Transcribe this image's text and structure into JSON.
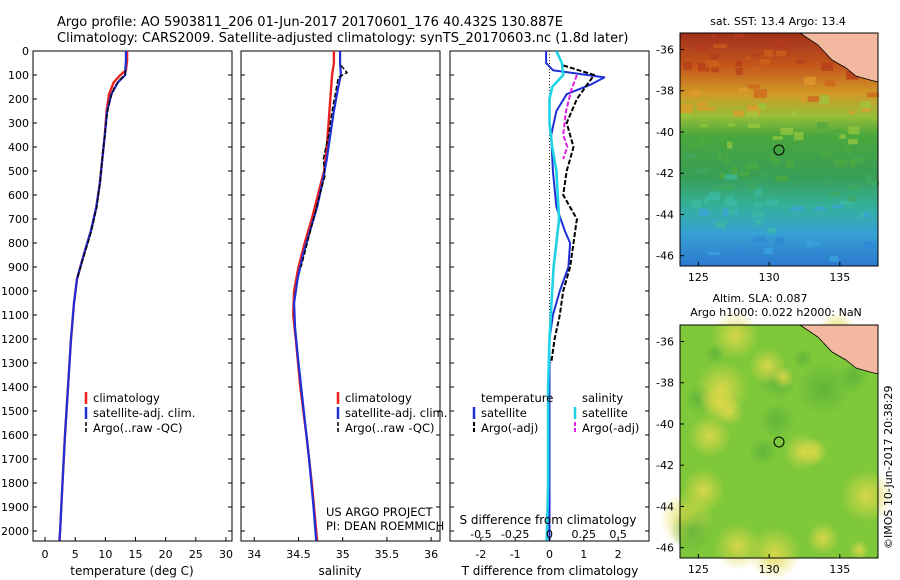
{
  "header": {
    "line1": "Argo profile: AO 5903811_206 01-Jun-2017 20170601_176 40.432S 130.887E",
    "line2": "Climatology: CARS2009. Satellite-adjusted climatology: synTS_20170603.nc (1.8d later)"
  },
  "depth_ticks": [
    "0",
    "100",
    "200",
    "300",
    "400",
    "500",
    "600",
    "700",
    "800",
    "900",
    "1000",
    "1100",
    "1200",
    "1300",
    "1400",
    "1500",
    "1600",
    "1700",
    "1800",
    "1900",
    "2000"
  ],
  "colors": {
    "climatology": "#e8231f",
    "satellite": "#1f2fd6",
    "argo": "#000000",
    "sat_salinity": "#1fd3e6",
    "argo_adj_salinity": "#e01fe0"
  },
  "chart_data": [
    {
      "type": "line",
      "xlabel": "temperature (deg C)",
      "xticks": [
        "0",
        "5",
        "10",
        "15",
        "20",
        "25",
        "30"
      ],
      "xlim": [
        -2,
        31
      ],
      "ylim": [
        0,
        2060
      ],
      "legend": [
        "climatology",
        "satellite-adj. clim.",
        "Argo(..raw -QC)"
      ],
      "series": [
        {
          "name": "climatology",
          "values": [
            [
              13.6,
              0
            ],
            [
              13.6,
              40
            ],
            [
              13.4,
              80
            ],
            [
              12.5,
              100
            ],
            [
              11.4,
              130
            ],
            [
              10.6,
              180
            ],
            [
              10.2,
              250
            ],
            [
              9.9,
              350
            ],
            [
              9.5,
              450
            ],
            [
              9.1,
              550
            ],
            [
              8.5,
              650
            ],
            [
              7.6,
              750
            ],
            [
              6.4,
              850
            ],
            [
              5.3,
              950
            ],
            [
              4.8,
              1050
            ],
            [
              4.3,
              1200
            ],
            [
              3.8,
              1400
            ],
            [
              3.3,
              1600
            ],
            [
              2.9,
              1800
            ],
            [
              2.5,
              2000
            ],
            [
              2.4,
              2040
            ]
          ]
        },
        {
          "name": "satellite-adj. clim.",
          "values": [
            [
              13.4,
              0
            ],
            [
              13.4,
              40
            ],
            [
              13.3,
              80
            ],
            [
              13.3,
              100
            ],
            [
              12.1,
              130
            ],
            [
              11.0,
              180
            ],
            [
              10.3,
              250
            ],
            [
              9.9,
              350
            ],
            [
              9.5,
              450
            ],
            [
              9.1,
              550
            ],
            [
              8.5,
              650
            ],
            [
              7.6,
              750
            ],
            [
              6.4,
              850
            ],
            [
              5.3,
              950
            ],
            [
              4.8,
              1050
            ],
            [
              4.3,
              1200
            ],
            [
              3.8,
              1400
            ],
            [
              3.3,
              1600
            ],
            [
              2.9,
              1800
            ],
            [
              2.5,
              2000
            ],
            [
              2.4,
              2040
            ]
          ]
        },
        {
          "name": "Argo(..raw -QC)",
          "values": [
            [
              13.4,
              80
            ],
            [
              13.2,
              100
            ],
            [
              12.4,
              120
            ],
            [
              11.5,
              150
            ],
            [
              10.8,
              200
            ],
            [
              10.3,
              260
            ],
            [
              9.9,
              350
            ],
            [
              9.5,
              450
            ],
            [
              9.1,
              550
            ],
            [
              8.6,
              650
            ],
            [
              7.7,
              750
            ],
            [
              6.5,
              850
            ],
            [
              5.3,
              950
            ]
          ]
        }
      ]
    },
    {
      "type": "line",
      "xlabel": "salinity",
      "xticks": [
        "34",
        "34.5",
        "35",
        "35.5",
        "36"
      ],
      "xlim": [
        33.85,
        36.1
      ],
      "ylim": [
        0,
        2060
      ],
      "legend": [
        "climatology",
        "satellite-adj. clim.",
        "Argo(..raw -QC)"
      ],
      "annotations": [
        "US ARGO PROJECT",
        "PI: DEAN ROEMMICH"
      ],
      "series": [
        {
          "name": "climatology",
          "values": [
            [
              34.9,
              0
            ],
            [
              34.9,
              50
            ],
            [
              34.88,
              100
            ],
            [
              34.86,
              200
            ],
            [
              34.84,
              300
            ],
            [
              34.82,
              400
            ],
            [
              34.79,
              500
            ],
            [
              34.72,
              600
            ],
            [
              34.65,
              700
            ],
            [
              34.57,
              800
            ],
            [
              34.5,
              900
            ],
            [
              34.45,
              1000
            ],
            [
              34.44,
              1100
            ],
            [
              34.47,
              1200
            ],
            [
              34.52,
              1400
            ],
            [
              34.59,
              1600
            ],
            [
              34.65,
              1800
            ],
            [
              34.7,
              2000
            ],
            [
              34.71,
              2040
            ]
          ]
        },
        {
          "name": "satellite-adj. clim.",
          "values": [
            [
              34.97,
              0
            ],
            [
              34.97,
              50
            ],
            [
              34.98,
              100
            ],
            [
              34.95,
              150
            ],
            [
              34.9,
              250
            ],
            [
              34.86,
              350
            ],
            [
              34.82,
              450
            ],
            [
              34.77,
              550
            ],
            [
              34.71,
              650
            ],
            [
              34.63,
              750
            ],
            [
              34.55,
              850
            ],
            [
              34.49,
              950
            ],
            [
              34.45,
              1050
            ],
            [
              34.46,
              1150
            ],
            [
              34.5,
              1300
            ],
            [
              34.56,
              1500
            ],
            [
              34.62,
              1700
            ],
            [
              34.67,
              1900
            ],
            [
              34.7,
              2040
            ]
          ]
        },
        {
          "name": "Argo(..raw -QC)",
          "values": [
            [
              34.98,
              60
            ],
            [
              35.05,
              90
            ],
            [
              34.95,
              110
            ],
            [
              34.92,
              170
            ],
            [
              34.88,
              250
            ],
            [
              34.84,
              350
            ],
            [
              34.78,
              450
            ],
            [
              34.8,
              520
            ],
            [
              34.74,
              600
            ],
            [
              34.67,
              700
            ],
            [
              34.6,
              800
            ],
            [
              34.53,
              900
            ]
          ]
        }
      ]
    },
    {
      "type": "line",
      "xlabel": "T difference from climatology",
      "xlabel_top": "S difference from climatology",
      "xticks": [
        "-2",
        "-1",
        "0",
        "1",
        "2"
      ],
      "xticks_top": [
        "-0.5",
        "-0.25",
        "0",
        "0.25",
        "0.5"
      ],
      "xlim": [
        -2.9,
        2.9
      ],
      "ylim": [
        0,
        2060
      ],
      "legend_headers": [
        "temperature",
        "salinity"
      ],
      "legend": [
        "satellite",
        "Argo(-adj)",
        "satellite",
        "Argo(-adj)"
      ],
      "series": [
        {
          "name": "temperature satellite",
          "values": [
            [
              -0.1,
              0
            ],
            [
              -0.1,
              50
            ],
            [
              0.1,
              80
            ],
            [
              1.6,
              110
            ],
            [
              1.2,
              140
            ],
            [
              0.5,
              180
            ],
            [
              0.2,
              250
            ],
            [
              0.05,
              350
            ],
            [
              0.1,
              500
            ],
            [
              0.2,
              650
            ],
            [
              0.45,
              750
            ],
            [
              0.6,
              800
            ],
            [
              0.55,
              900
            ],
            [
              0.3,
              1000
            ],
            [
              0.1,
              1100
            ],
            [
              0.0,
              1200
            ],
            [
              0.0,
              1400
            ],
            [
              0.0,
              2040
            ]
          ]
        },
        {
          "name": "temperature Argo(-adj)",
          "values": [
            [
              0.4,
              60
            ],
            [
              1.3,
              100
            ],
            [
              1.1,
              140
            ],
            [
              0.8,
              200
            ],
            [
              0.5,
              300
            ],
            [
              0.7,
              400
            ],
            [
              0.5,
              500
            ],
            [
              0.4,
              600
            ],
            [
              0.8,
              700
            ],
            [
              0.7,
              800
            ],
            [
              0.6,
              900
            ],
            [
              0.4,
              1000
            ],
            [
              0.3,
              1100
            ],
            [
              0.15,
              1200
            ],
            [
              0.05,
              1300
            ]
          ]
        },
        {
          "name": "salinity satellite",
          "values": [
            [
              0.05,
              0
            ],
            [
              0.09,
              50
            ],
            [
              0.1,
              100
            ],
            [
              0.02,
              150
            ],
            [
              0.0,
              200
            ],
            [
              0.0,
              300
            ],
            [
              0.02,
              400
            ],
            [
              0.05,
              500
            ],
            [
              0.06,
              600
            ],
            [
              0.07,
              700
            ],
            [
              0.05,
              800
            ],
            [
              0.03,
              900
            ],
            [
              0.02,
              1000
            ],
            [
              0.0,
              1200
            ],
            [
              -0.01,
              1400
            ],
            [
              -0.01,
              1800
            ],
            [
              -0.02,
              2040
            ]
          ]
        },
        {
          "name": "salinity Argo(-adj)",
          "values": [
            [
              0.2,
              100
            ],
            [
              0.16,
              160
            ],
            [
              0.12,
              250
            ],
            [
              0.1,
              350
            ],
            [
              0.13,
              400
            ],
            [
              0.1,
              450
            ]
          ]
        }
      ]
    }
  ],
  "maps": {
    "sst": {
      "title": "sat. SST: 13.4 Argo: 13.4",
      "yticks": [
        "-36",
        "-38",
        "-40",
        "-42",
        "-44",
        "-46"
      ],
      "xticks": [
        "125",
        "130",
        "135"
      ]
    },
    "sla": {
      "title1": "Altim. SLA: 0.087",
      "title2": "Argo h1000: 0.022 h2000: NaN",
      "yticks": [
        "-36",
        "-38",
        "-40",
        "-42",
        "-44",
        "-46"
      ],
      "xticks": [
        "125",
        "130",
        "135"
      ]
    }
  },
  "credit": "©IMOS 10-Jun-2017 20:38:29"
}
